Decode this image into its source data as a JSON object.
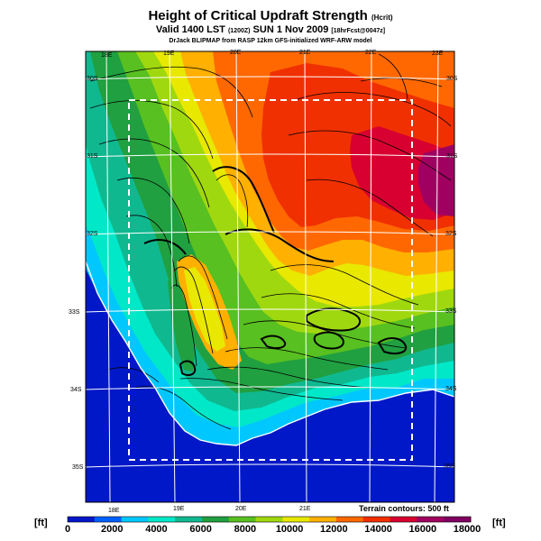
{
  "title": {
    "main": "Height of Critical Updraft Strength",
    "main_unit": "(Hcrit)",
    "valid": "Valid 1400 LST",
    "valid_time": "(1200Z)",
    "valid_date": "SUN 1 Nov 2009",
    "forecast": "[18hrFcst@0047z]",
    "credit": "DrJack BLIPMAP from RASP 12km GFS-initialized WRF-ARW model"
  },
  "map": {
    "lon_labels_top": [
      "18E",
      "19E",
      "20E",
      "21E",
      "22E",
      "23E"
    ],
    "lon_labels_bottom": [
      "18E",
      "19E",
      "20E",
      "21E"
    ],
    "lat_labels_left": [
      "30S",
      "31S",
      "32S",
      "33S",
      "34S",
      "35S"
    ],
    "lat_labels_right": [
      "30S",
      "31S",
      "32S",
      "33S",
      "34S",
      "35S"
    ],
    "terrain_note": "Terrain contours: 500 ft"
  },
  "colorbar": {
    "unit_left": "[ft]",
    "unit_right": "[ft]",
    "tick_labels": [
      "0",
      "2000",
      "4000",
      "6000",
      "8000",
      "10000",
      "12000",
      "14000",
      "16000",
      "18000"
    ],
    "colors": [
      "#0018c8",
      "#0060ff",
      "#00c8ff",
      "#00e8c8",
      "#10b890",
      "#20a040",
      "#58c020",
      "#a0d810",
      "#e8e800",
      "#ffb000",
      "#ff6800",
      "#f03000",
      "#d80030",
      "#a00060",
      "#800060"
    ]
  }
}
